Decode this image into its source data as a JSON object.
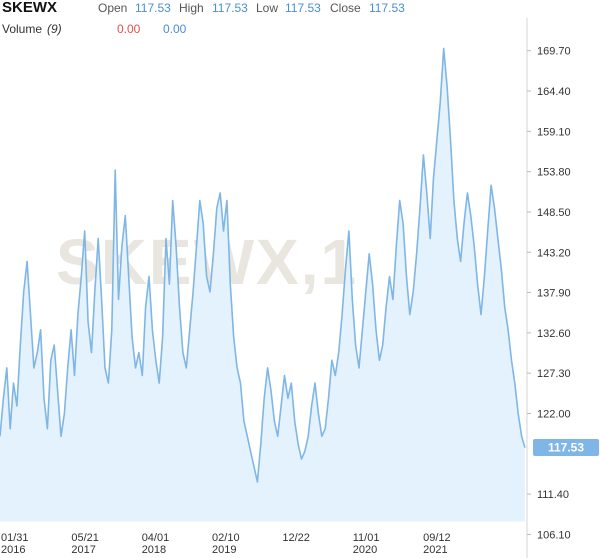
{
  "header": {
    "symbol": "SKEWX",
    "open_label": "Open",
    "open_value": "117.53",
    "high_label": "High",
    "high_value": "117.53",
    "low_label": "Low",
    "low_value": "117.53",
    "close_label": "Close",
    "close_value": "117.53"
  },
  "volume": {
    "label": "Volume",
    "param": "(9)",
    "value_red": "0.00",
    "value_blue": "0.00"
  },
  "watermark": "SKEWX,1",
  "colors": {
    "line": "#7fb6e6",
    "area": "#e3f2fd",
    "badge": "#7fb6e6"
  },
  "chart_data": {
    "type": "area",
    "title": "SKEWX",
    "ylim": [
      103,
      174
    ],
    "yticks": [
      "169.70",
      "164.40",
      "159.10",
      "153.80",
      "148.50",
      "143.20",
      "137.90",
      "132.60",
      "127.30",
      "122.00",
      "111.40",
      "106.10"
    ],
    "xticks": [
      {
        "t": 0,
        "line1": "01/31",
        "line2": "2016"
      },
      {
        "t": 0.134,
        "line1": "05/21",
        "line2": "2017"
      },
      {
        "t": 0.268,
        "line1": "04/01",
        "line2": "2018"
      },
      {
        "t": 0.402,
        "line1": "02/10",
        "line2": "2019"
      },
      {
        "t": 0.536,
        "line1": "12/22",
        "line2": ""
      },
      {
        "t": 0.67,
        "line1": "11/01",
        "line2": "2020"
      },
      {
        "t": 0.804,
        "line1": "09/12",
        "line2": "2021"
      }
    ],
    "last_value": "117.53",
    "area_baseline": 107.8,
    "series": [
      {
        "values": [
          119,
          124,
          128,
          120,
          126,
          123,
          131,
          138,
          142,
          135,
          128,
          130,
          133,
          124,
          120,
          129,
          131,
          125,
          119,
          122,
          128,
          133,
          127,
          135,
          140,
          146,
          134,
          130,
          138,
          145,
          137,
          128,
          126,
          133,
          154,
          137,
          144,
          148,
          140,
          132,
          128,
          130,
          127,
          136,
          140,
          133,
          129,
          126,
          132,
          145,
          139,
          150,
          144,
          136,
          130,
          128,
          133,
          138,
          144,
          150,
          147,
          140,
          138,
          143,
          149,
          151,
          146,
          150,
          139,
          132,
          128,
          126,
          121,
          119,
          117,
          115,
          113,
          118,
          124,
          128,
          125,
          121,
          119,
          123,
          127,
          124,
          126,
          121,
          118,
          116,
          117,
          119,
          123,
          126,
          122,
          119,
          120,
          124,
          129,
          127,
          130,
          135,
          141,
          146,
          137,
          131,
          128,
          133,
          138,
          143,
          139,
          133,
          129,
          131,
          136,
          140,
          137,
          144,
          150,
          147,
          140,
          135,
          138,
          143,
          149,
          156,
          151,
          145,
          153,
          158,
          163,
          170,
          165,
          158,
          150,
          145,
          142,
          147,
          151,
          148,
          144,
          139,
          135,
          140,
          146,
          152,
          149,
          145,
          141,
          136,
          133,
          129,
          126,
          122,
          119,
          117.5
        ]
      }
    ]
  }
}
